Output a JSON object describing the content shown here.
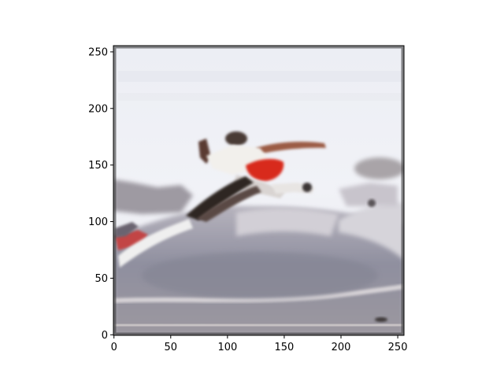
{
  "figure": {
    "background": "#ffffff",
    "axes": {
      "x_ticks": [
        "0",
        "50",
        "100",
        "150",
        "200",
        "250"
      ],
      "y_ticks": [
        "0",
        "50",
        "100",
        "150",
        "200",
        "250"
      ],
      "x_tick_values": [
        0,
        50,
        100,
        150,
        200,
        250
      ],
      "y_tick_values": [
        0,
        50,
        100,
        150,
        200,
        250
      ],
      "x_range": [
        -0.5,
        255.5
      ],
      "y_range": [
        255.5,
        -0.5
      ],
      "y_inverted": true,
      "grid": false
    },
    "image": {
      "description_icon": "skateboarder-photo",
      "palette": {
        "sky": "#eef0f6",
        "ground": "#8e8f9e",
        "shirt": "#f2f0ec",
        "shorts": "#d8291e",
        "skin": "#9b5c45",
        "board": "#2f2624",
        "ramp_edge": "#bdb4b4"
      }
    }
  }
}
